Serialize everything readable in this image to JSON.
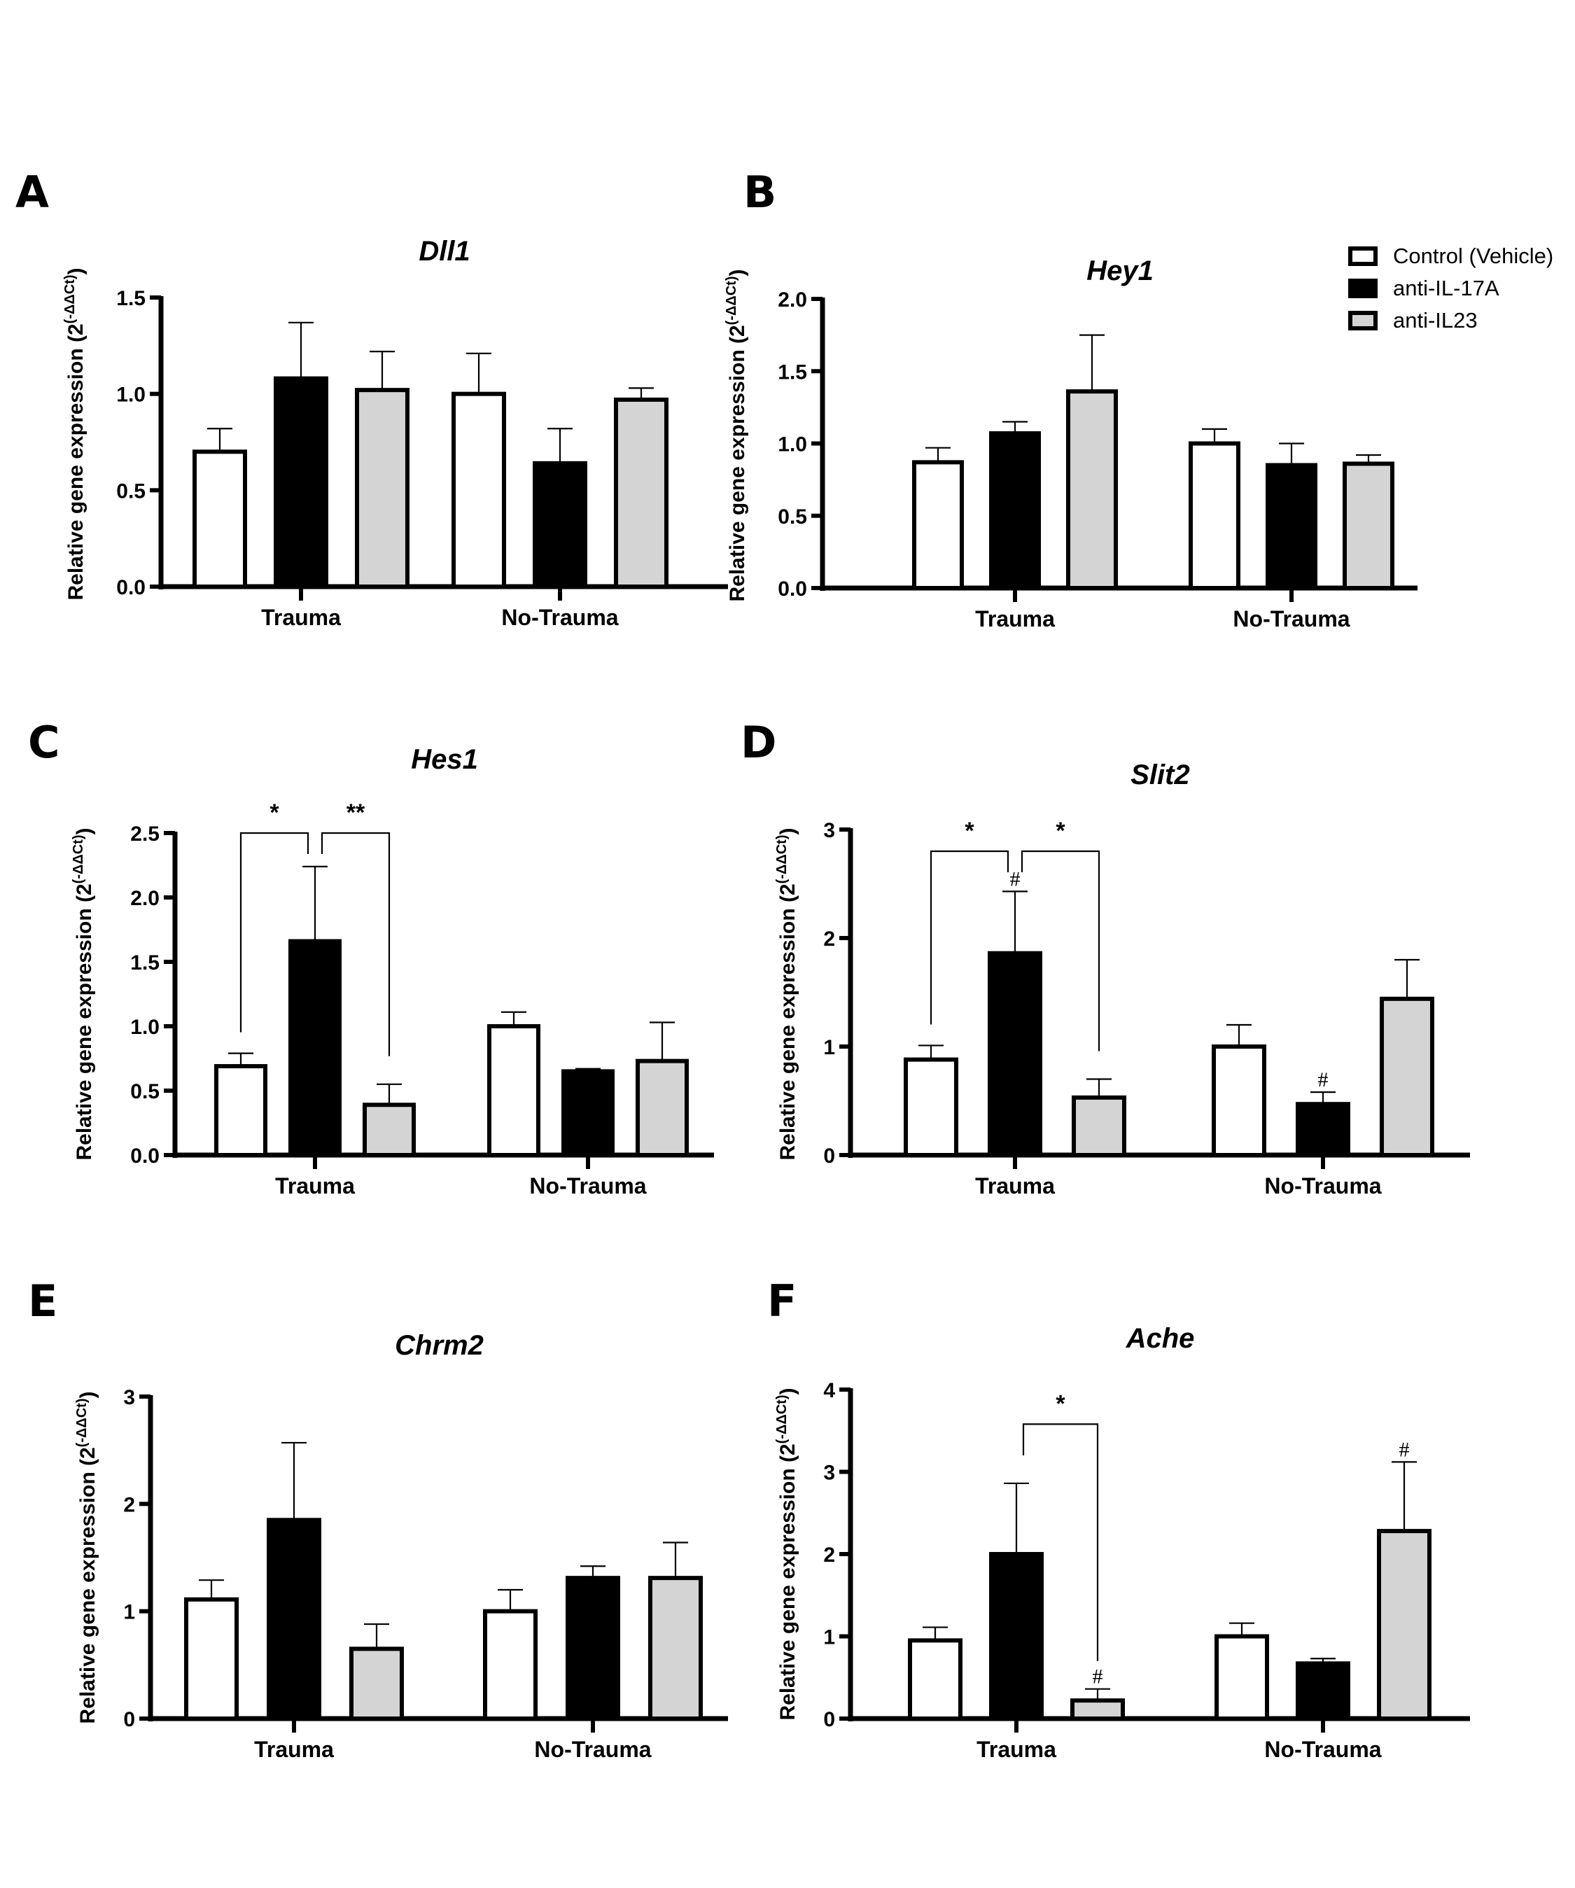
{
  "figure": {
    "colors": {
      "control": "#ffffff",
      "anti_il17a": "#000000",
      "anti_il23": "#d4d4d4",
      "stroke": "#000000"
    },
    "legend": {
      "position": "top-right",
      "items": [
        {
          "label": "Control (Vehicle)",
          "color": "#ffffff"
        },
        {
          "label": "anti-IL-17A",
          "color": "#000000"
        },
        {
          "label": "anti-IL23",
          "color": "#d4d4d4"
        }
      ]
    },
    "ylabel_main": "Relative gene expression (2",
    "ylabel_sup": "(-ΔΔCt)",
    "ylabel_close": ")"
  },
  "chart_data": [
    {
      "panel": "A",
      "type": "bar",
      "title": "Dll1",
      "ylabel": "Relative gene expression (2^(-ΔΔCt))",
      "xlabel": "",
      "categories": [
        "Trauma",
        "No-Trauma"
      ],
      "ylim": [
        0,
        1.5
      ],
      "yticks": [
        "0.0",
        "0.5",
        "1.0",
        "1.5"
      ],
      "ytick_values": [
        0,
        0.5,
        1.0,
        1.5
      ],
      "series": [
        {
          "name": "Control (Vehicle)",
          "values": [
            0.7,
            1.0
          ],
          "error_upper": [
            0.82,
            1.21
          ]
        },
        {
          "name": "anti-IL-17A",
          "values": [
            1.08,
            0.64
          ],
          "error_upper": [
            1.37,
            0.82
          ]
        },
        {
          "name": "anti-IL23",
          "values": [
            1.02,
            0.97
          ],
          "error_upper": [
            1.22,
            1.03
          ]
        }
      ],
      "annotations": []
    },
    {
      "panel": "B",
      "type": "bar",
      "title": "Hey1",
      "ylabel": "Relative gene expression (2^(-ΔΔCt))",
      "xlabel": "",
      "categories": [
        "Trauma",
        "No-Trauma"
      ],
      "ylim": [
        0,
        2.0
      ],
      "yticks": [
        "0.0",
        "0.5",
        "1.0",
        "1.5",
        "2.0"
      ],
      "ytick_values": [
        0,
        0.5,
        1.0,
        1.5,
        2.0
      ],
      "series": [
        {
          "name": "Control (Vehicle)",
          "values": [
            0.87,
            1.0
          ],
          "error_upper": [
            0.97,
            1.1
          ]
        },
        {
          "name": "anti-IL-17A",
          "values": [
            1.07,
            0.85
          ],
          "error_upper": [
            1.15,
            1.0
          ]
        },
        {
          "name": "anti-IL23",
          "values": [
            1.36,
            0.86
          ],
          "error_upper": [
            1.75,
            0.92
          ]
        }
      ],
      "annotations": []
    },
    {
      "panel": "C",
      "type": "bar",
      "title": "Hes1",
      "ylabel": "Relative gene expression (2^(-ΔΔCt))",
      "xlabel": "",
      "categories": [
        "Trauma",
        "No-Trauma"
      ],
      "ylim": [
        0,
        2.5
      ],
      "yticks": [
        "0.0",
        "0.5",
        "1.0",
        "1.5",
        "2.0",
        "2.5"
      ],
      "ytick_values": [
        0,
        0.5,
        1.0,
        1.5,
        2.0,
        2.5
      ],
      "series": [
        {
          "name": "Control (Vehicle)",
          "values": [
            0.69,
            1.0
          ],
          "error_upper": [
            0.79,
            1.11
          ]
        },
        {
          "name": "anti-IL-17A",
          "values": [
            1.66,
            0.65
          ],
          "error_upper": [
            2.24,
            0.67
          ]
        },
        {
          "name": "anti-IL23",
          "values": [
            0.39,
            0.73
          ],
          "error_upper": [
            0.55,
            1.03
          ]
        }
      ],
      "annotations": [
        {
          "type": "bracket",
          "group": 0,
          "from": 0,
          "to": 1,
          "level": 2.5,
          "text": "*"
        },
        {
          "type": "bracket",
          "group": 0,
          "from": 1,
          "to": 2,
          "level": 2.5,
          "text": "**"
        }
      ]
    },
    {
      "panel": "D",
      "type": "bar",
      "title": "Slit2",
      "ylabel": "Relative gene expression (2^(-ΔΔCt))",
      "xlabel": "",
      "categories": [
        "Trauma",
        "No-Trauma"
      ],
      "ylim": [
        0,
        3
      ],
      "yticks": [
        "0",
        "1",
        "2",
        "3"
      ],
      "ytick_values": [
        0,
        1,
        2,
        3
      ],
      "series": [
        {
          "name": "Control (Vehicle)",
          "values": [
            0.88,
            1.0
          ],
          "error_upper": [
            1.01,
            1.2
          ]
        },
        {
          "name": "anti-IL-17A",
          "values": [
            1.86,
            0.47
          ],
          "error_upper": [
            2.43,
            0.58
          ]
        },
        {
          "name": "anti-IL23",
          "values": [
            0.53,
            1.44
          ],
          "error_upper": [
            0.7,
            1.8
          ]
        }
      ],
      "annotations": [
        {
          "type": "bracket",
          "group": 0,
          "from": 0,
          "to": 1,
          "level": 2.8,
          "text": "*"
        },
        {
          "type": "bracket",
          "group": 0,
          "from": 1,
          "to": 2,
          "level": 2.8,
          "text": "*"
        },
        {
          "type": "hash",
          "group": 0,
          "bar": 1,
          "text": "#"
        },
        {
          "type": "hash",
          "group": 1,
          "bar": 1,
          "text": "#"
        }
      ]
    },
    {
      "panel": "E",
      "type": "bar",
      "title": "Chrm2",
      "ylabel": "Relative gene expression (2^(-ΔΔCt))",
      "xlabel": "",
      "categories": [
        "Trauma",
        "No-Trauma"
      ],
      "ylim": [
        0,
        3
      ],
      "yticks": [
        "0",
        "1",
        "2",
        "3"
      ],
      "ytick_values": [
        0,
        1,
        2,
        3
      ],
      "series": [
        {
          "name": "Control (Vehicle)",
          "values": [
            1.11,
            1.0
          ],
          "error_upper": [
            1.29,
            1.2
          ]
        },
        {
          "name": "anti-IL-17A",
          "values": [
            1.85,
            1.31
          ],
          "error_upper": [
            2.57,
            1.42
          ]
        },
        {
          "name": "anti-IL23",
          "values": [
            0.65,
            1.31
          ],
          "error_upper": [
            0.88,
            1.64
          ]
        }
      ],
      "annotations": []
    },
    {
      "panel": "F",
      "type": "bar",
      "title": "Ache",
      "ylabel": "Relative gene expression (2^(-ΔΔCt))",
      "xlabel": "",
      "categories": [
        "Trauma",
        "No-Trauma"
      ],
      "ylim": [
        0,
        4
      ],
      "yticks": [
        "0",
        "1",
        "2",
        "3",
        "4"
      ],
      "ytick_values": [
        0,
        1,
        2,
        3,
        4
      ],
      "series": [
        {
          "name": "Control (Vehicle)",
          "values": [
            0.95,
            1.0
          ],
          "error_upper": [
            1.11,
            1.16
          ]
        },
        {
          "name": "anti-IL-17A",
          "values": [
            2.0,
            0.67
          ],
          "error_upper": [
            2.86,
            0.73
          ]
        },
        {
          "name": "anti-IL23",
          "values": [
            0.22,
            2.28
          ],
          "error_upper": [
            0.36,
            3.12
          ]
        }
      ],
      "annotations": [
        {
          "type": "bracket",
          "group": 0,
          "from": 1,
          "to": 2,
          "level": 3.58,
          "text": "*"
        },
        {
          "type": "hash",
          "group": 0,
          "bar": 2,
          "text": "#"
        },
        {
          "type": "hash",
          "group": 1,
          "bar": 2,
          "text": "#"
        }
      ]
    }
  ]
}
